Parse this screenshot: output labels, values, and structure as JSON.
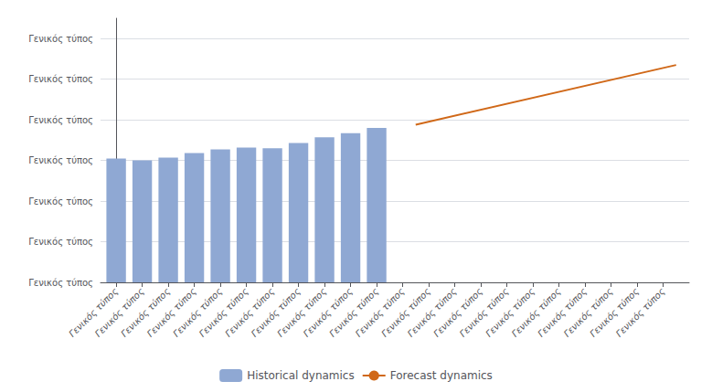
{
  "chart_data": {
    "type": "bar",
    "series": [
      {
        "name": "Historical dynamics",
        "type": "bar",
        "color": "#8FA8D3",
        "x": [
          0,
          1,
          2,
          3,
          4,
          5,
          6,
          7,
          8,
          9,
          10
        ],
        "values": [
          3.05,
          3.0,
          3.07,
          3.18,
          3.27,
          3.32,
          3.3,
          3.43,
          3.57,
          3.67,
          3.8
        ]
      },
      {
        "name": "Forecast dynamics",
        "type": "line",
        "color": "#D06818",
        "x": [
          11.5,
          21.5
        ],
        "values": [
          3.88,
          5.35
        ]
      }
    ],
    "xlim": [
      -0.6,
      22.0
    ],
    "xticks": [
      {
        "value": 0,
        "label": "Γενικός τύπος"
      },
      {
        "value": 1,
        "label": "Γενικός τύπος"
      },
      {
        "value": 2,
        "label": "Γενικός τύπος"
      },
      {
        "value": 3,
        "label": "Γενικός τύπος"
      },
      {
        "value": 4,
        "label": "Γενικός τύπος"
      },
      {
        "value": 5,
        "label": "Γενικός τύπος"
      },
      {
        "value": 6,
        "label": "Γενικός τύπος"
      },
      {
        "value": 7,
        "label": "Γενικός τύπος"
      },
      {
        "value": 8,
        "label": "Γενικός τύπος"
      },
      {
        "value": 9,
        "label": "Γενικός τύπος"
      },
      {
        "value": 10,
        "label": "Γενικός τύπος"
      },
      {
        "value": 11,
        "label": "Γενικός τύπος"
      },
      {
        "value": 12,
        "label": "Γενικός τύπος"
      },
      {
        "value": 13,
        "label": "Γενικός τύπος"
      },
      {
        "value": 14,
        "label": "Γενικός τύπος"
      },
      {
        "value": 15,
        "label": "Γενικός τύπος"
      },
      {
        "value": 16,
        "label": "Γενικός τύπος"
      },
      {
        "value": 17,
        "label": "Γενικός τύπος"
      },
      {
        "value": 18,
        "label": "Γενικός τύπος"
      },
      {
        "value": 19,
        "label": "Γενικός τύπος"
      },
      {
        "value": 20,
        "label": "Γενικός τύπος"
      },
      {
        "value": 21,
        "label": "Γενικός τύπος"
      }
    ],
    "ylim": [
      0,
      6.5
    ],
    "yticks": [
      {
        "value": 0,
        "label": "Γενικός τύπος"
      },
      {
        "value": 1,
        "label": "Γενικός τύπος"
      },
      {
        "value": 2,
        "label": "Γενικός τύπος"
      },
      {
        "value": 3,
        "label": "Γενικός τύπος"
      },
      {
        "value": 4,
        "label": "Γενικός τύπος"
      },
      {
        "value": 5,
        "label": "Γενικός τύπος"
      },
      {
        "value": 6,
        "label": "Γενικός τύπος"
      }
    ],
    "grid": true,
    "legend": "bottom"
  }
}
